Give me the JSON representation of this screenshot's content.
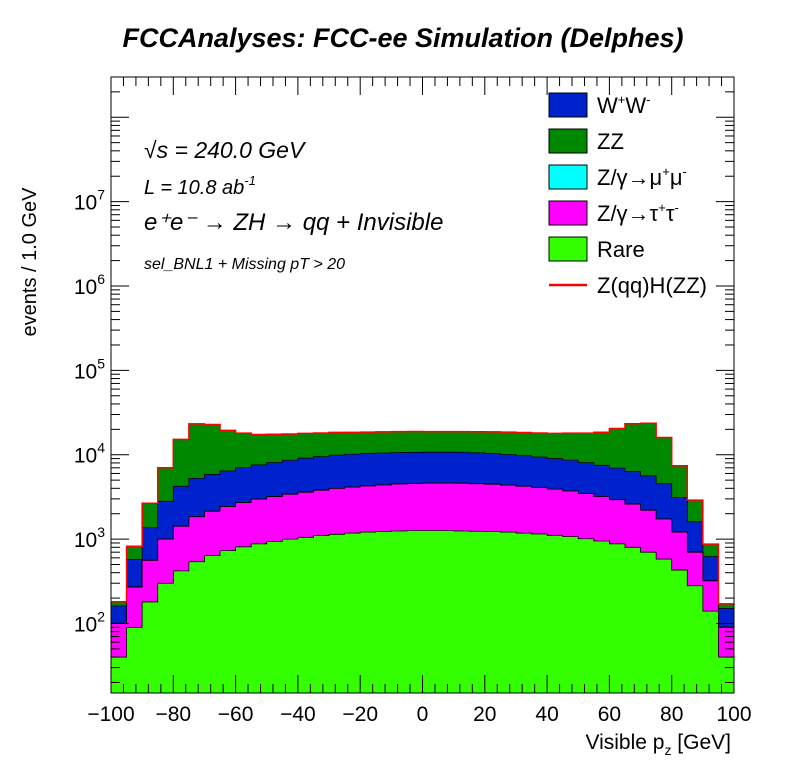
{
  "chart_data": {
    "type": "area",
    "title": "FCCAnalyses: FCC-ee Simulation (Delphes)",
    "xlabel": "Visible p_z [GeV]",
    "ylabel": "events / 1.0 GeV",
    "xlim": [
      -100,
      100
    ],
    "ylim": [
      15,
      300000000
    ],
    "yscale": "log",
    "stacked": true,
    "grid": false,
    "legend_position": "top-right",
    "xticks": [
      "−100",
      "−80",
      "−60",
      "−40",
      "−20",
      "0",
      "20",
      "40",
      "60",
      "80",
      "100"
    ],
    "xtick_values": [
      -100,
      -80,
      -60,
      -40,
      -20,
      0,
      20,
      40,
      60,
      80,
      100
    ],
    "ytick_labels": [
      {
        "base": "10",
        "exp": "2",
        "value": 100
      },
      {
        "base": "10",
        "exp": "3",
        "value": 1000
      },
      {
        "base": "10",
        "exp": "4",
        "value": 10000
      },
      {
        "base": "10",
        "exp": "5",
        "value": 100000
      },
      {
        "base": "10",
        "exp": "6",
        "value": 1000000
      },
      {
        "base": "10",
        "exp": "7",
        "value": 10000000
      }
    ],
    "annotations": {
      "sqrt_s_symbol": "√s",
      "sqrt_s_rest": " = 240.0 GeV",
      "lumi_text": "L = 10.8 ab",
      "lumi_exp": "-1",
      "process_text": "e⁺e⁻ → ZH → qq + Invisible",
      "selection_text": "sel_BNL1 + Missing pT > 20"
    },
    "x": [
      -97.5,
      -92.5,
      -87.5,
      -82.5,
      -77.5,
      -72.5,
      -67.5,
      -62.5,
      -57.5,
      -52.5,
      -47.5,
      -42.5,
      -37.5,
      -32.5,
      -27.5,
      -22.5,
      -17.5,
      -12.5,
      -7.5,
      -2.5,
      2.5,
      7.5,
      12.5,
      17.5,
      22.5,
      27.5,
      32.5,
      37.5,
      42.5,
      47.5,
      52.5,
      57.5,
      62.5,
      67.5,
      72.5,
      77.5,
      82.5,
      87.5,
      92.5,
      97.5
    ],
    "series": [
      {
        "name": "Rare",
        "color": "#33ff00",
        "values": [
          40,
          90,
          180,
          300,
          420,
          540,
          640,
          730,
          810,
          880,
          940,
          1000,
          1050,
          1100,
          1140,
          1180,
          1210,
          1230,
          1250,
          1260,
          1260,
          1260,
          1250,
          1240,
          1230,
          1210,
          1180,
          1150,
          1110,
          1070,
          1010,
          950,
          880,
          800,
          700,
          580,
          430,
          280,
          140,
          40
        ]
      },
      {
        "name": "Z/γ→τ⁺τ⁻",
        "color": "#ff00ff",
        "values": [
          60,
          180,
          380,
          700,
          1000,
          1300,
          1500,
          1700,
          1900,
          2100,
          2250,
          2400,
          2550,
          2700,
          2850,
          2950,
          3050,
          3150,
          3250,
          3300,
          3350,
          3350,
          3350,
          3300,
          3250,
          3150,
          3050,
          2950,
          2800,
          2650,
          2450,
          2250,
          2050,
          1800,
          1500,
          1150,
          780,
          420,
          180,
          50
        ]
      },
      {
        "name": "Z/γ→μ⁺μ⁻",
        "color": "#00ffff",
        "values": [
          1,
          2,
          3,
          4,
          5,
          6,
          6,
          6,
          6,
          6,
          6,
          6,
          6,
          6,
          6,
          6,
          6,
          6,
          6,
          6,
          6,
          6,
          6,
          6,
          6,
          6,
          6,
          6,
          6,
          6,
          6,
          6,
          6,
          6,
          6,
          5,
          4,
          3,
          2,
          1
        ]
      },
      {
        "name": "W⁺W⁻",
        "color": "#0022cc",
        "values": [
          60,
          300,
          800,
          1800,
          2800,
          3400,
          3700,
          4000,
          4300,
          4600,
          4900,
          5200,
          5500,
          5700,
          5900,
          6000,
          6100,
          6100,
          6100,
          6100,
          6100,
          6100,
          6100,
          6000,
          5900,
          5700,
          5500,
          5300,
          5100,
          4900,
          4600,
          4300,
          4000,
          3700,
          3400,
          2800,
          1900,
          900,
          300,
          60
        ]
      },
      {
        "name": "ZZ",
        "color": "#008800",
        "values": [
          20,
          250,
          1300,
          4200,
          11000,
          18000,
          17000,
          13000,
          11000,
          9800,
          9400,
          9000,
          8800,
          8600,
          8500,
          8300,
          8200,
          8200,
          8200,
          8200,
          8100,
          8100,
          8100,
          8200,
          8300,
          8500,
          8600,
          8700,
          8900,
          9400,
          10000,
          11000,
          13500,
          17000,
          18000,
          11500,
          4300,
          1300,
          250,
          20
        ]
      }
    ],
    "signal": {
      "name": "Z(qq)H(ZZ)",
      "color": "#ff0000",
      "note": "drawn on top of stack"
    },
    "legend": [
      {
        "label_main": "W",
        "sup1": "+",
        "mid": "W",
        "sup2": "-",
        "tail": "",
        "color": "#0022cc",
        "kind": "box"
      },
      {
        "label_main": "ZZ",
        "sup1": "",
        "mid": "",
        "sup2": "",
        "tail": "",
        "color": "#008800",
        "kind": "box"
      },
      {
        "label_main": "Z/γ→μ",
        "sup1": "+",
        "mid": "μ",
        "sup2": "-",
        "tail": "",
        "color": "#00ffff",
        "kind": "box"
      },
      {
        "label_main": "Z/γ→τ",
        "sup1": "+",
        "mid": "τ",
        "sup2": "-",
        "tail": "",
        "color": "#ff00ff",
        "kind": "box"
      },
      {
        "label_main": "Rare",
        "sup1": "",
        "mid": "",
        "sup2": "",
        "tail": "",
        "color": "#33ff00",
        "kind": "box"
      },
      {
        "label_main": "Z(qq)H(ZZ)",
        "sup1": "",
        "mid": "",
        "sup2": "",
        "tail": "",
        "color": "#ff0000",
        "kind": "line"
      }
    ]
  }
}
